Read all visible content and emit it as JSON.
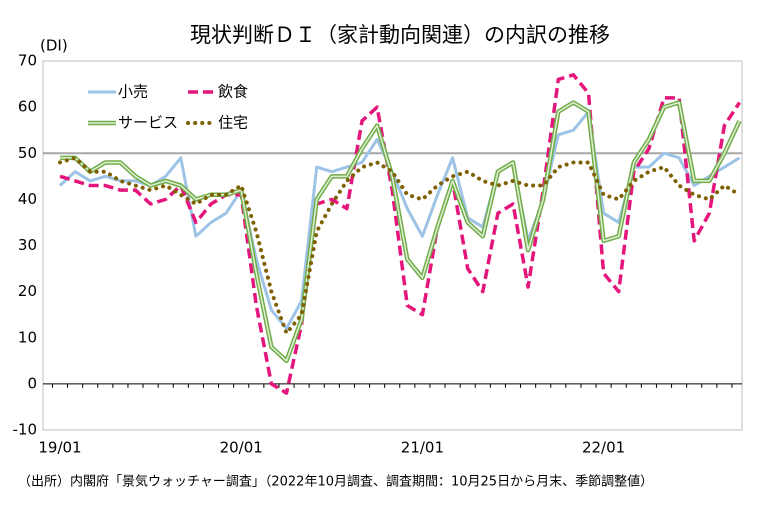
{
  "chart_data": {
    "type": "line",
    "title": "現状判断ＤＩ（家計動向関連）の内訳の推移",
    "y_unit": "(DI)",
    "source": "（出所）内閣府「景気ウォッチャー調査」（2022年10月調査、調査期間：10月25日から月末、季節調整値）",
    "categories": [
      "19/01",
      null,
      null,
      null,
      null,
      null,
      null,
      null,
      null,
      null,
      null,
      null,
      "20/01",
      null,
      null,
      null,
      null,
      null,
      null,
      null,
      null,
      null,
      null,
      null,
      "21/01",
      null,
      null,
      null,
      null,
      null,
      null,
      null,
      null,
      null,
      null,
      null,
      "22/01",
      null,
      null,
      null,
      null,
      null,
      null,
      null,
      null,
      null
    ],
    "ylim": [
      -10,
      70
    ],
    "yticks": [
      -10,
      0,
      10,
      20,
      30,
      40,
      50,
      60,
      70
    ],
    "reference_line": 50,
    "series": [
      {
        "name": "小売",
        "color": "#9dc3e6",
        "style": "solid",
        "values": [
          43,
          46,
          44,
          45,
          44,
          44,
          43,
          45,
          49,
          32,
          35,
          37,
          42,
          27,
          16,
          12,
          18,
          47,
          46,
          47,
          48,
          53,
          46,
          38,
          32,
          41,
          49,
          36,
          34,
          46,
          48,
          31,
          40,
          54,
          55,
          59,
          37,
          35,
          47,
          47,
          50,
          49,
          43,
          45,
          47,
          49
        ]
      },
      {
        "name": "飲食",
        "color": "#e4167c",
        "style": "dashed",
        "values": [
          45,
          44,
          43,
          43,
          42,
          42,
          39,
          40,
          43,
          35,
          39,
          41,
          41,
          17,
          0,
          -2,
          13,
          39,
          40,
          38,
          57,
          60,
          42,
          17,
          15,
          34,
          44,
          25,
          20,
          37,
          39,
          21,
          42,
          66,
          67,
          63,
          24,
          20,
          46,
          51,
          62,
          62,
          31,
          37,
          56,
          61
        ]
      },
      {
        "name": "サービス",
        "color": "#70ad47",
        "style": "double",
        "values": [
          49,
          49,
          46,
          48,
          48,
          45,
          43,
          44,
          43,
          40,
          41,
          41,
          42,
          24,
          8,
          5,
          14,
          40,
          45,
          45,
          51,
          56,
          45,
          27,
          23,
          34,
          44,
          35,
          32,
          46,
          48,
          29,
          40,
          59,
          61,
          59,
          31,
          32,
          48,
          53,
          60,
          61,
          44,
          44,
          50,
          57
        ]
      },
      {
        "name": "住宅",
        "color": "#7f6000",
        "style": "dotted",
        "values": [
          48,
          49,
          46,
          46,
          44,
          43,
          42,
          43,
          41,
          39,
          41,
          41,
          43,
          33,
          20,
          11,
          15,
          33,
          39,
          44,
          47,
          48,
          46,
          41,
          40,
          43,
          45,
          46,
          44,
          43,
          44,
          43,
          43,
          47,
          48,
          48,
          41,
          40,
          44,
          46,
          47,
          43,
          41,
          40,
          43,
          41
        ]
      }
    ]
  }
}
